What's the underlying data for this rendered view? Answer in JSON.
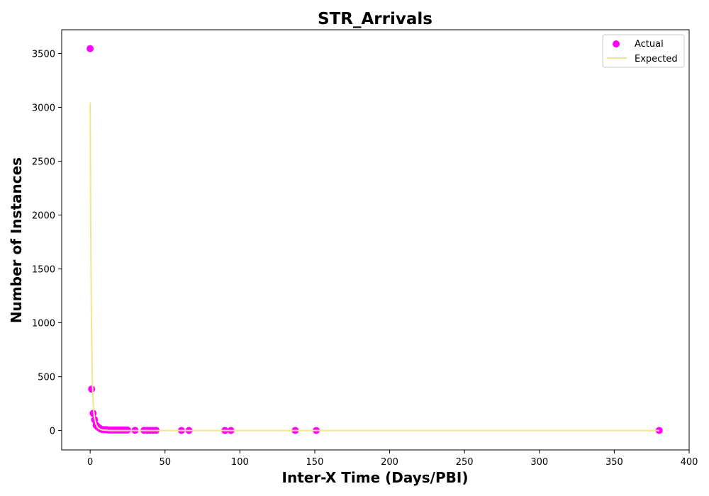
{
  "chart_data": {
    "type": "scatter",
    "title": "STR_Arrivals",
    "xlabel": "Inter-X Time (Days/PBI)",
    "ylabel": "Number of Instances",
    "xlim": [
      -19,
      400
    ],
    "ylim": [
      -180,
      3720
    ],
    "xticks": [
      0,
      50,
      100,
      150,
      200,
      250,
      300,
      350,
      400
    ],
    "yticks": [
      0,
      500,
      1000,
      1500,
      2000,
      2500,
      3000,
      3500
    ],
    "grid": false,
    "legend": {
      "position": "top-right",
      "entries": [
        "Actual",
        "Expected"
      ]
    },
    "colors": {
      "actual": "#ff00ff",
      "expected": "#f0e68c"
    },
    "series": [
      {
        "name": "Actual",
        "kind": "scatter",
        "x": [
          0,
          1,
          2,
          3,
          4,
          5,
          6,
          7,
          8,
          9,
          10,
          11,
          12,
          13,
          14,
          15,
          16,
          17,
          18,
          19,
          20,
          21,
          22,
          23,
          24,
          25,
          30,
          36,
          38,
          40,
          42,
          44,
          61,
          66,
          90,
          94,
          137,
          151,
          380
        ],
        "y": [
          3545,
          385,
          160,
          100,
          50,
          35,
          25,
          15,
          10,
          8,
          8,
          8,
          5,
          5,
          5,
          5,
          5,
          5,
          5,
          5,
          5,
          5,
          5,
          5,
          5,
          5,
          2,
          2,
          2,
          2,
          2,
          2,
          1,
          1,
          1,
          1,
          1,
          1,
          1
        ]
      },
      {
        "name": "Expected",
        "kind": "line",
        "x": [
          0,
          0.5,
          1,
          1.5,
          2,
          2.5,
          3,
          4,
          5,
          6,
          7,
          8,
          10,
          12,
          15,
          20,
          30,
          50,
          100,
          150,
          200,
          250,
          300,
          350,
          380
        ],
        "y": [
          3045,
          1600,
          850,
          460,
          260,
          160,
          110,
          55,
          30,
          18,
          10,
          6,
          3,
          1,
          0,
          0,
          0,
          0,
          0,
          0,
          0,
          0,
          0,
          0,
          0
        ]
      }
    ]
  }
}
